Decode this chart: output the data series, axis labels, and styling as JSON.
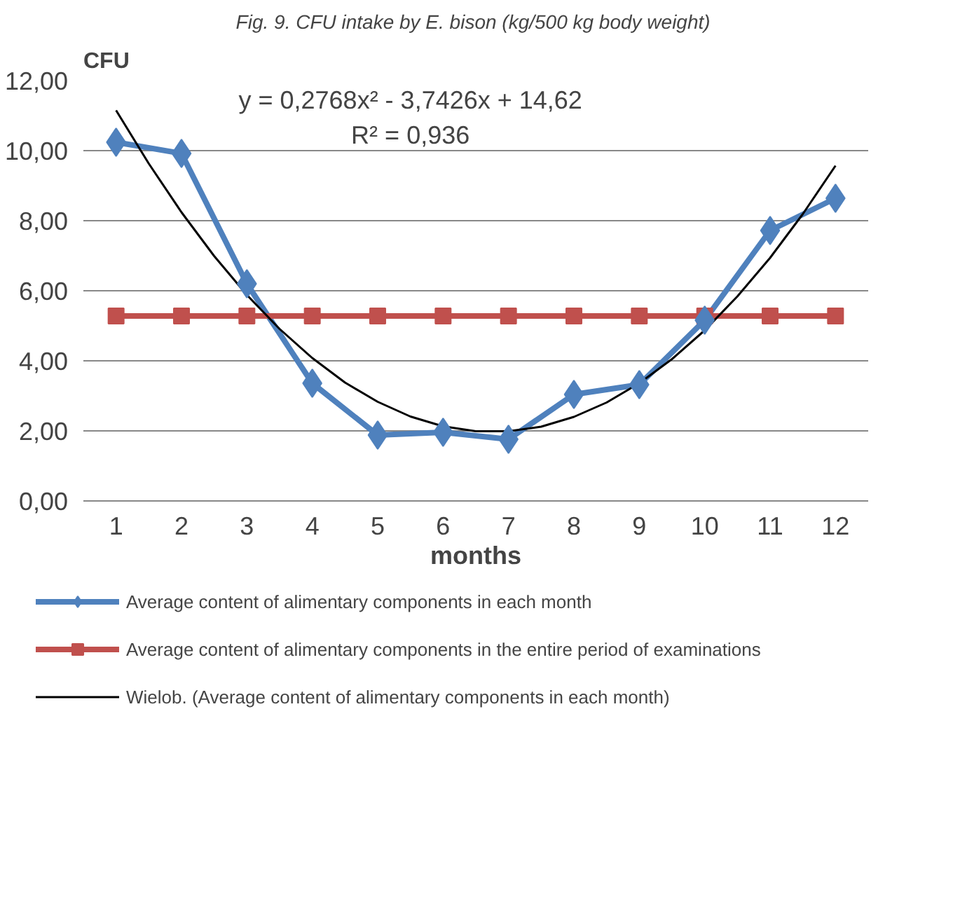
{
  "chart_data": {
    "type": "line",
    "title": "Fig. 9. CFU intake by E. bison  (kg/500 kg body weight)",
    "xlabel": "months",
    "ylabel": "CFU",
    "x": [
      1,
      2,
      3,
      4,
      5,
      6,
      7,
      8,
      9,
      10,
      11,
      12
    ],
    "xlim": [
      0.5,
      12.5
    ],
    "xticks": [
      1,
      2,
      3,
      4,
      5,
      6,
      7,
      8,
      9,
      10,
      11,
      12
    ],
    "ylim": [
      0,
      12
    ],
    "yticks": [
      {
        "value": 0,
        "label": "0,00"
      },
      {
        "value": 2,
        "label": "2,00"
      },
      {
        "value": 4,
        "label": "4,00"
      },
      {
        "value": 6,
        "label": "6,00"
      },
      {
        "value": 8,
        "label": "8,00"
      },
      {
        "value": 10,
        "label": "10,00"
      },
      {
        "value": 12,
        "label": "12,00"
      }
    ],
    "grid": "y",
    "legend": "bottom",
    "series": [
      {
        "name": "Average content of alimentary components in each month",
        "color": "#4f81bd",
        "marker": "diamond",
        "values": [
          10.24,
          9.92,
          6.2,
          3.36,
          1.88,
          1.96,
          1.76,
          3.04,
          3.32,
          5.16,
          7.72,
          8.64
        ]
      },
      {
        "name": "Average content of alimentary components in the entire period of examinations",
        "color": "#c0504d",
        "marker": "square",
        "values": [
          5.28,
          5.28,
          5.28,
          5.28,
          5.28,
          5.28,
          5.28,
          5.28,
          5.28,
          5.28,
          5.28,
          5.28
        ]
      },
      {
        "name": "Wielob. (Average content of alimentary components in each month)",
        "color": "#000000",
        "marker": "none",
        "x": [
          1,
          1.5,
          2,
          2.5,
          3,
          3.5,
          4,
          4.5,
          5,
          5.5,
          6,
          6.5,
          7,
          7.5,
          8,
          8.5,
          9,
          9.5,
          10,
          10.5,
          11,
          11.5,
          12
        ],
        "values": [
          11.15,
          9.63,
          8.24,
          6.99,
          5.88,
          4.91,
          4.08,
          3.38,
          2.83,
          2.41,
          2.13,
          1.99,
          1.99,
          2.12,
          2.4,
          2.81,
          3.36,
          4.05,
          4.87,
          5.84,
          6.94,
          8.19,
          9.57
        ]
      }
    ],
    "annotations": [
      "y = 0,2768x² - 3,7426x + 14,62",
      "R² = 0,936"
    ]
  }
}
